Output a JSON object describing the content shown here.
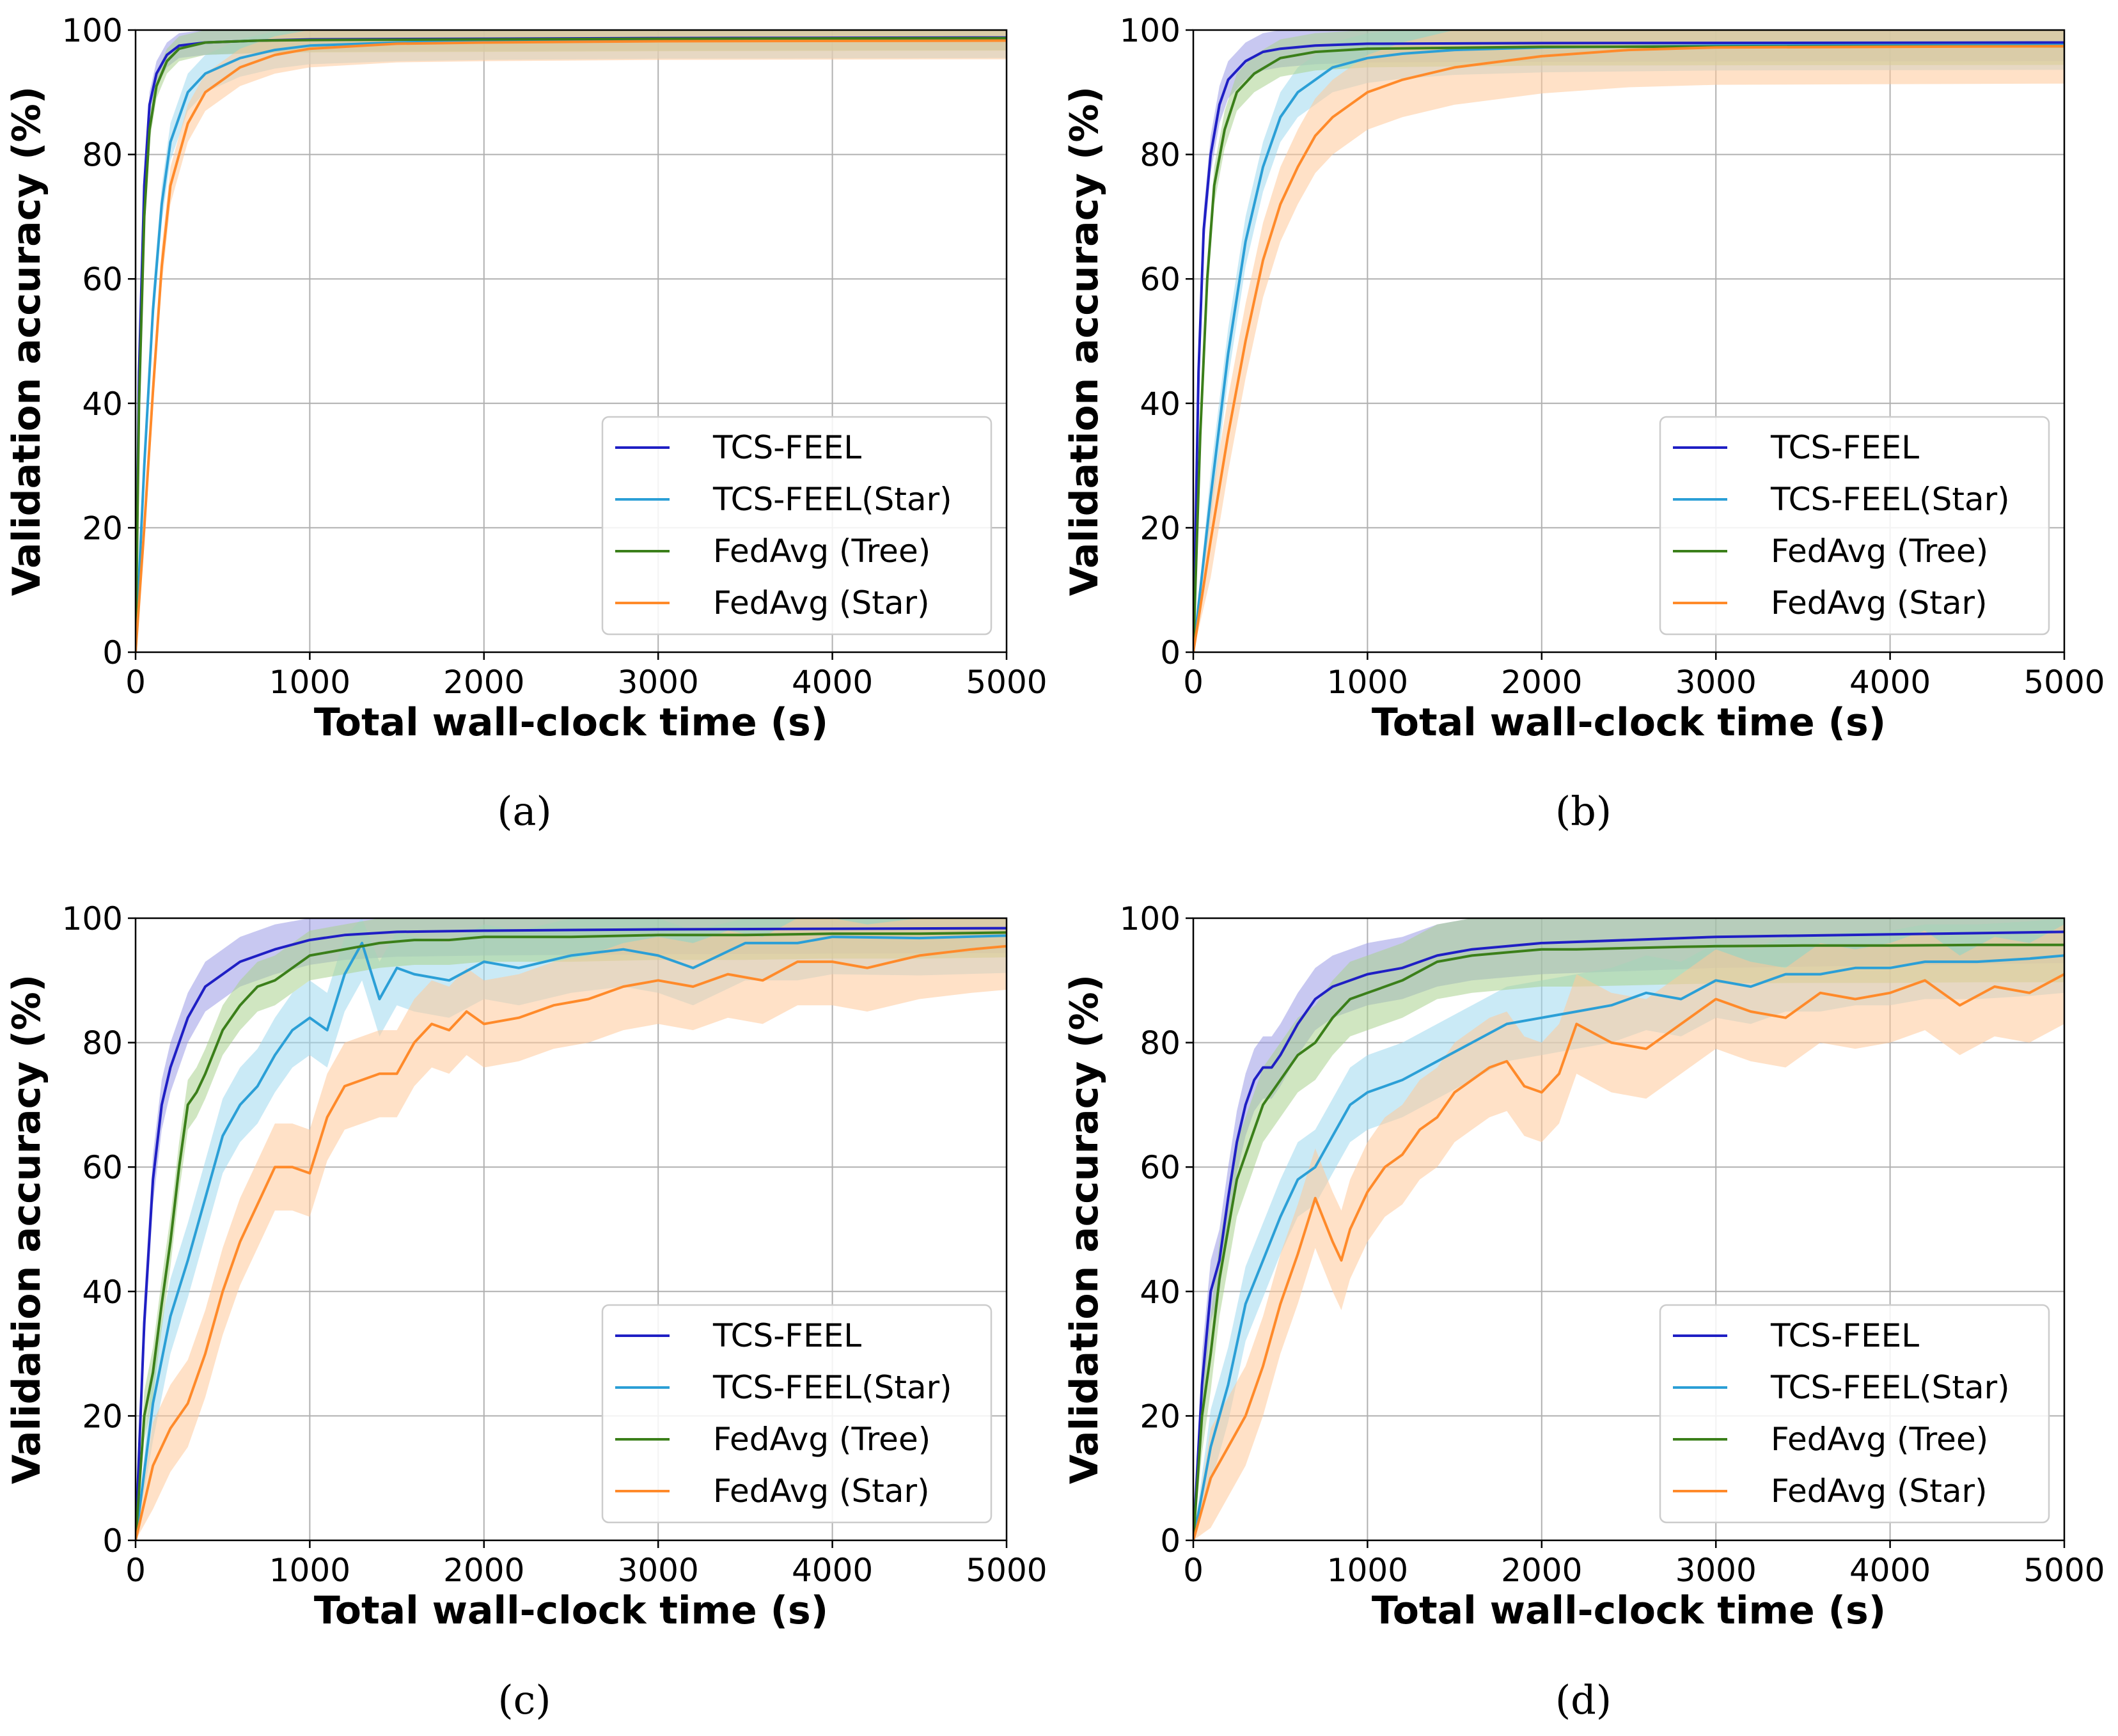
{
  "figure": {
    "series_colors": {
      "TCS-FEEL": "#1f1fc4",
      "TCS-FEEL(Star)": "#2b9fd6",
      "FedAvg (Tree)": "#3b7f1a",
      "FedAvg (Star)": "#ff8a2a"
    },
    "band_colors": {
      "TCS-FEEL": "#9b9be6",
      "TCS-FEEL(Star)": "#9fd8ef",
      "FedAvg (Tree)": "#a9d18e",
      "FedAvg (Star)": "#ffc999"
    }
  },
  "chart_data": [
    {
      "type": "line",
      "caption": "(a)",
      "xlabel": "Total wall-clock time (s)",
      "ylabel": "Validation accuracy (%)",
      "xlim": [
        0,
        5000
      ],
      "ylim": [
        0,
        100
      ],
      "xticks": [
        "0",
        "1000",
        "2000",
        "3000",
        "4000",
        "5000"
      ],
      "yticks": [
        "0",
        "20",
        "40",
        "60",
        "80",
        "100"
      ],
      "grid": true,
      "legend_position": "lower-right",
      "legend": [
        "TCS-FEEL",
        "TCS-FEEL(Star)",
        "FedAvg (Tree)",
        "FedAvg (Star)"
      ],
      "series": [
        {
          "name": "TCS-FEEL",
          "x": [
            0,
            20,
            50,
            80,
            120,
            180,
            250,
            400,
            700,
            1000,
            2000,
            3000,
            5000
          ],
          "y": [
            0,
            45,
            75,
            88,
            93,
            96,
            97.5,
            98,
            98.3,
            98.5,
            98.6,
            98.7,
            98.8
          ],
          "band": 2
        },
        {
          "name": "TCS-FEEL(Star)",
          "x": [
            0,
            50,
            100,
            150,
            200,
            300,
            400,
            600,
            800,
            1000,
            1500,
            2000,
            3000,
            5000
          ],
          "y": [
            0,
            30,
            55,
            72,
            82,
            90,
            93,
            95.5,
            96.8,
            97.5,
            98,
            98.2,
            98.4,
            98.5
          ],
          "band": 3
        },
        {
          "name": "FedAvg (Tree)",
          "x": [
            0,
            20,
            50,
            80,
            120,
            180,
            250,
            400,
            700,
            1000,
            2000,
            3000,
            5000
          ],
          "y": [
            0,
            40,
            70,
            84,
            91,
            95,
            97,
            98,
            98.3,
            98.4,
            98.5,
            98.6,
            98.7
          ],
          "band": 2
        },
        {
          "name": "FedAvg (Star)",
          "x": [
            0,
            50,
            100,
            150,
            200,
            300,
            400,
            600,
            800,
            1000,
            1500,
            2000,
            3000,
            5000
          ],
          "y": [
            0,
            20,
            42,
            62,
            75,
            85,
            90,
            94,
            96,
            97,
            97.8,
            98,
            98.2,
            98.3
          ],
          "band": 3
        }
      ]
    },
    {
      "type": "line",
      "caption": "(b)",
      "xlabel": "Total wall-clock time (s)",
      "ylabel": "Validation accuracy (%)",
      "xlim": [
        0,
        5000
      ],
      "ylim": [
        0,
        100
      ],
      "xticks": [
        "0",
        "1000",
        "2000",
        "3000",
        "4000",
        "5000"
      ],
      "yticks": [
        "0",
        "20",
        "40",
        "60",
        "80",
        "100"
      ],
      "grid": true,
      "legend_position": "lower-right",
      "legend": [
        "TCS-FEEL",
        "TCS-FEEL(Star)",
        "FedAvg (Tree)",
        "FedAvg (Star)"
      ],
      "series": [
        {
          "name": "TCS-FEEL",
          "x": [
            0,
            30,
            60,
            100,
            150,
            200,
            300,
            400,
            500,
            700,
            1000,
            2000,
            5000
          ],
          "y": [
            0,
            45,
            68,
            80,
            88,
            92,
            95,
            96.5,
            97,
            97.5,
            97.8,
            97.9,
            98
          ],
          "band": 3
        },
        {
          "name": "TCS-FEEL(Star)",
          "x": [
            0,
            100,
            200,
            300,
            400,
            500,
            600,
            800,
            1000,
            1200,
            1500,
            2000,
            3000,
            5000
          ],
          "y": [
            0,
            25,
            48,
            66,
            78,
            86,
            90,
            94,
            95.5,
            96.2,
            96.8,
            97.2,
            97.5,
            97.6
          ],
          "band": 4
        },
        {
          "name": "FedAvg (Tree)",
          "x": [
            0,
            40,
            80,
            120,
            180,
            250,
            350,
            500,
            700,
            1000,
            2000,
            5000
          ],
          "y": [
            0,
            35,
            60,
            75,
            84,
            90,
            93,
            95.5,
            96.5,
            97,
            97.3,
            97.4
          ],
          "band": 3
        },
        {
          "name": "FedAvg (Star)",
          "x": [
            0,
            100,
            200,
            300,
            400,
            500,
            600,
            700,
            800,
            1000,
            1200,
            1500,
            2000,
            2500,
            3000,
            5000
          ],
          "y": [
            0,
            18,
            35,
            50,
            63,
            72,
            78,
            83,
            86,
            90,
            92,
            94,
            95.8,
            96.8,
            97.2,
            97.4
          ],
          "band": 6
        }
      ]
    },
    {
      "type": "line",
      "caption": "(c)",
      "xlabel": "Total wall-clock time (s)",
      "ylabel": "Validation accuracy (%)",
      "xlim": [
        0,
        5000
      ],
      "ylim": [
        0,
        100
      ],
      "xticks": [
        "0",
        "1000",
        "2000",
        "3000",
        "4000",
        "5000"
      ],
      "yticks": [
        "0",
        "20",
        "40",
        "60",
        "80",
        "100"
      ],
      "grid": true,
      "legend_position": "lower-right",
      "legend": [
        "TCS-FEEL",
        "TCS-FEEL(Star)",
        "FedAvg (Tree)",
        "FedAvg (Star)"
      ],
      "series": [
        {
          "name": "TCS-FEEL",
          "x": [
            0,
            50,
            100,
            150,
            200,
            300,
            400,
            500,
            600,
            800,
            1000,
            1200,
            1500,
            2000,
            3000,
            5000
          ],
          "y": [
            0,
            35,
            58,
            70,
            76,
            84,
            89,
            91,
            93,
            95,
            96.5,
            97.3,
            97.8,
            98,
            98.2,
            98.4
          ],
          "band": 4
        },
        {
          "name": "TCS-FEEL(Star)",
          "x": [
            0,
            100,
            200,
            300,
            400,
            500,
            600,
            700,
            800,
            900,
            1000,
            1100,
            1200,
            1300,
            1400,
            1500,
            1600,
            1800,
            2000,
            2200,
            2500,
            2800,
            3000,
            3200,
            3500,
            3800,
            4000,
            4500,
            5000
          ],
          "y": [
            0,
            22,
            36,
            45,
            55,
            65,
            70,
            73,
            78,
            82,
            84,
            82,
            91,
            96,
            87,
            92,
            91,
            90,
            93,
            92,
            94,
            95,
            94,
            92,
            96,
            96,
            97,
            96.8,
            97.2
          ],
          "band": 6
        },
        {
          "name": "FedAvg (Tree)",
          "x": [
            0,
            50,
            100,
            150,
            200,
            250,
            300,
            350,
            400,
            500,
            600,
            700,
            800,
            900,
            1000,
            1200,
            1400,
            1600,
            1800,
            2000,
            2500,
            3000,
            3500,
            4000,
            4500,
            5000
          ],
          "y": [
            0,
            20,
            27,
            38,
            48,
            60,
            70,
            72,
            75,
            82,
            86,
            89,
            90,
            92,
            94,
            95,
            96,
            96.5,
            96.5,
            97,
            97,
            97.3,
            97.3,
            97.5,
            97.5,
            97.7
          ],
          "band": 4
        },
        {
          "name": "FedAvg (Star)",
          "x": [
            0,
            100,
            200,
            300,
            400,
            500,
            600,
            700,
            800,
            900,
            1000,
            1100,
            1200,
            1300,
            1400,
            1500,
            1600,
            1700,
            1800,
            1900,
            2000,
            2200,
            2400,
            2600,
            2800,
            3000,
            3200,
            3400,
            3600,
            3800,
            4000,
            4200,
            4500,
            4800,
            5000
          ],
          "y": [
            0,
            12,
            18,
            22,
            30,
            40,
            48,
            54,
            60,
            60,
            59,
            68,
            73,
            74,
            75,
            75,
            80,
            83,
            82,
            85,
            83,
            84,
            86,
            87,
            89,
            90,
            89,
            91,
            90,
            93,
            93,
            92,
            94,
            95,
            95.5
          ],
          "band": 7
        }
      ]
    },
    {
      "type": "line",
      "caption": "(d)",
      "xlabel": "Total wall-clock time (s)",
      "ylabel": "Validation accuracy (%)",
      "xlim": [
        0,
        5000
      ],
      "ylim": [
        0,
        100
      ],
      "xticks": [
        "0",
        "1000",
        "2000",
        "3000",
        "4000",
        "5000"
      ],
      "yticks": [
        "0",
        "20",
        "40",
        "60",
        "80",
        "100"
      ],
      "grid": true,
      "legend_position": "lower-right",
      "legend": [
        "TCS-FEEL",
        "TCS-FEEL(Star)",
        "FedAvg (Tree)",
        "FedAvg (Star)"
      ],
      "series": [
        {
          "name": "TCS-FEEL",
          "x": [
            0,
            50,
            100,
            150,
            200,
            250,
            300,
            350,
            400,
            450,
            500,
            600,
            700,
            800,
            1000,
            1200,
            1400,
            1600,
            2000,
            2500,
            3000,
            3500,
            4000,
            4500,
            5000
          ],
          "y": [
            0,
            25,
            40,
            45,
            55,
            64,
            70,
            74,
            76,
            76,
            78,
            83,
            87,
            89,
            91,
            92,
            94,
            95,
            96,
            96.5,
            97,
            97.2,
            97.4,
            97.6,
            97.8
          ],
          "band": 5
        },
        {
          "name": "TCS-FEEL(Star)",
          "x": [
            0,
            100,
            200,
            300,
            400,
            500,
            600,
            700,
            800,
            900,
            1000,
            1200,
            1400,
            1600,
            1800,
            2000,
            2200,
            2400,
            2600,
            2800,
            3000,
            3200,
            3400,
            3600,
            3800,
            4000,
            4200,
            4500,
            4800,
            5000
          ],
          "y": [
            0,
            15,
            25,
            38,
            45,
            52,
            58,
            60,
            65,
            70,
            72,
            74,
            77,
            80,
            83,
            84,
            85,
            86,
            88,
            87,
            90,
            89,
            91,
            91,
            92,
            92,
            93,
            93,
            93.5,
            94
          ],
          "band": 6
        },
        {
          "name": "FedAvg (Tree)",
          "x": [
            0,
            50,
            100,
            150,
            200,
            250,
            300,
            350,
            400,
            500,
            600,
            700,
            800,
            900,
            1000,
            1200,
            1400,
            1600,
            1800,
            2000,
            2200,
            2500,
            2800,
            3000,
            3500,
            4000,
            4500,
            5000
          ],
          "y": [
            0,
            20,
            30,
            42,
            50,
            58,
            62,
            66,
            70,
            74,
            78,
            80,
            84,
            87,
            88,
            90,
            93,
            94,
            94.5,
            95,
            95,
            95.2,
            95.4,
            95.5,
            95.6,
            95.6,
            95.7,
            95.7
          ],
          "band": 6
        },
        {
          "name": "FedAvg (Star)",
          "x": [
            0,
            100,
            200,
            300,
            400,
            500,
            600,
            700,
            800,
            850,
            900,
            1000,
            1100,
            1200,
            1300,
            1400,
            1500,
            1600,
            1700,
            1800,
            1900,
            2000,
            2100,
            2200,
            2400,
            2600,
            2800,
            3000,
            3200,
            3400,
            3600,
            3800,
            4000,
            4200,
            4400,
            4600,
            4800,
            5000
          ],
          "y": [
            0,
            10,
            15,
            20,
            28,
            38,
            46,
            55,
            48,
            45,
            50,
            56,
            60,
            62,
            66,
            68,
            72,
            74,
            76,
            77,
            73,
            72,
            75,
            83,
            80,
            79,
            83,
            87,
            85,
            84,
            88,
            87,
            88,
            90,
            86,
            89,
            88,
            91
          ],
          "band": 8
        }
      ]
    }
  ]
}
